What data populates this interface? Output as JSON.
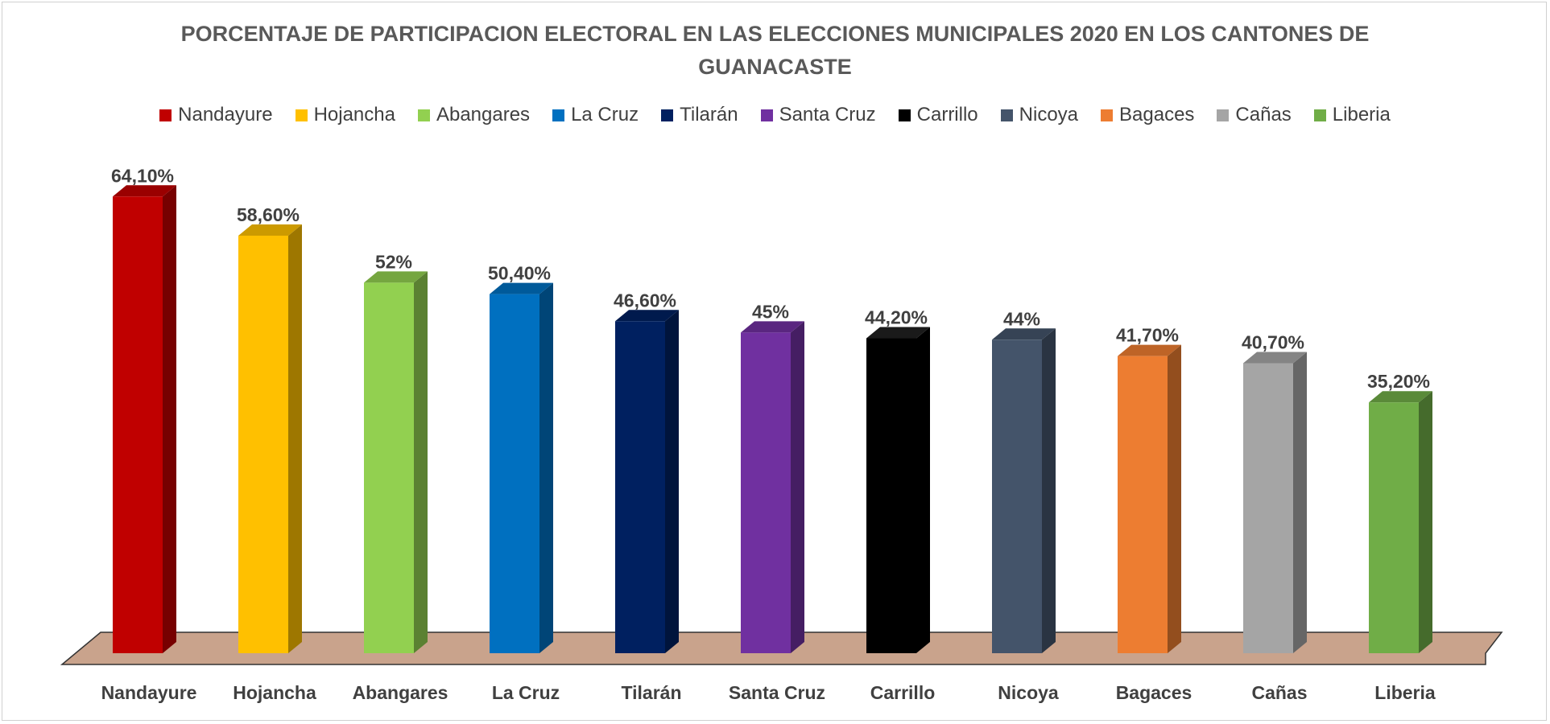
{
  "chart_data": {
    "type": "bar",
    "title": "PORCENTAJE DE PARTICIPACION ELECTORAL EN LAS ELECCIONES MUNICIPALES 2020 EN LOS CANTONES DE GUANACASTE",
    "categories": [
      "Nandayure",
      "Hojancha",
      "Abangares",
      "La Cruz",
      "Tilarán",
      "Santa Cruz",
      "Carrillo",
      "Nicoya",
      "Bagaces",
      "Cañas",
      "Liberia"
    ],
    "values": [
      64.1,
      58.6,
      52,
      50.4,
      46.6,
      45,
      44.2,
      44,
      41.7,
      40.7,
      35.2
    ],
    "value_labels": [
      "64,10%",
      "58,60%",
      "52%",
      "50,40%",
      "46,60%",
      "45%",
      "44,20%",
      "44%",
      "41,70%",
      "40,70%",
      "35,20%"
    ],
    "colors": [
      "#c00000",
      "#ffc000",
      "#92d050",
      "#0070c0",
      "#002060",
      "#7030a0",
      "#000000",
      "#44546a",
      "#ed7d31",
      "#a5a5a5",
      "#70ad47"
    ],
    "floor_color": "#c9a38c",
    "legend_position": "top",
    "grid": false,
    "xlabel": "",
    "ylabel": "",
    "ylim": [
      0,
      70
    ]
  }
}
